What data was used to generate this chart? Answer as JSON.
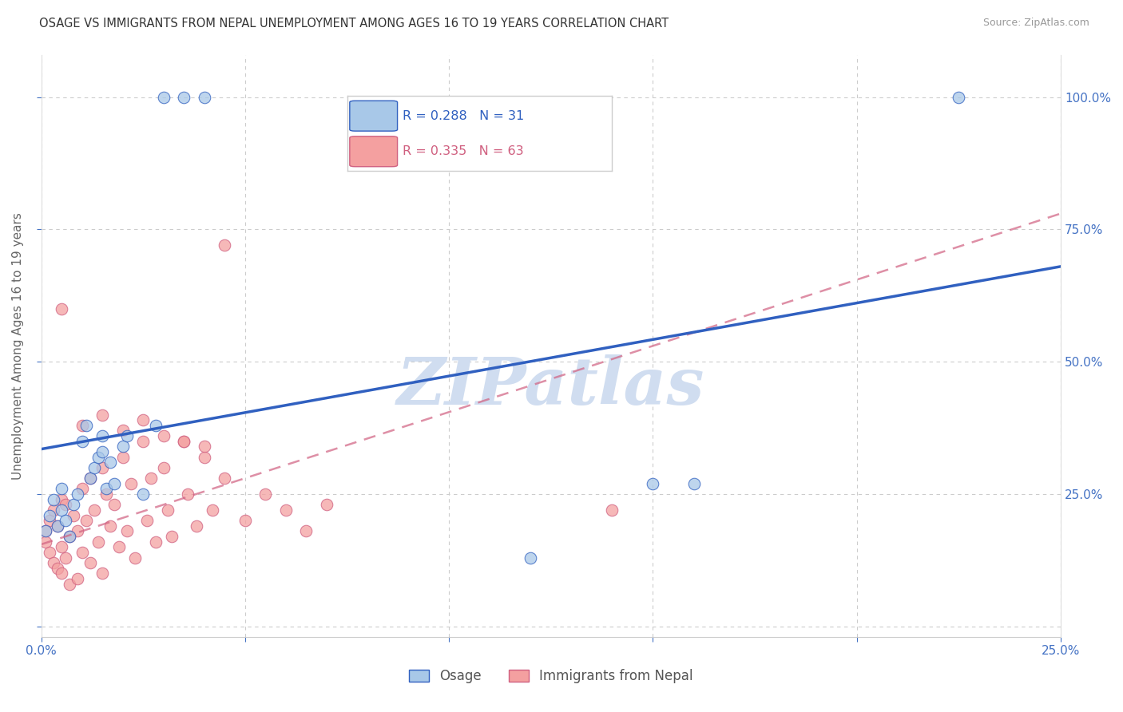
{
  "title": "OSAGE VS IMMIGRANTS FROM NEPAL UNEMPLOYMENT AMONG AGES 16 TO 19 YEARS CORRELATION CHART",
  "source": "Source: ZipAtlas.com",
  "ylabel": "Unemployment Among Ages 16 to 19 years",
  "legend_label1": "Osage",
  "legend_label2": "Immigrants from Nepal",
  "R1": 0.288,
  "N1": 31,
  "R2": 0.335,
  "N2": 63,
  "xlim": [
    0.0,
    0.25
  ],
  "ylim": [
    -0.02,
    1.08
  ],
  "yticks": [
    0.0,
    0.25,
    0.5,
    0.75,
    1.0
  ],
  "ytick_labels": [
    "",
    "25.0%",
    "50.0%",
    "75.0%",
    "100.0%"
  ],
  "xticks": [
    0.0,
    0.05,
    0.1,
    0.15,
    0.2,
    0.25
  ],
  "xtick_labels_show": [
    "0.0%",
    "",
    "",
    "",
    "",
    "25.0%"
  ],
  "color_blue": "#a8c8e8",
  "color_pink": "#f4a0a0",
  "trend_blue": "#3060c0",
  "trend_pink": "#d06080",
  "watermark": "ZIPatlas",
  "watermark_color": "#d0ddf0",
  "blue_trend_x0": 0.0,
  "blue_trend_y0": 0.335,
  "blue_trend_x1": 0.25,
  "blue_trend_y1": 0.68,
  "pink_trend_x0": 0.0,
  "pink_trend_y0": 0.155,
  "pink_trend_x1": 0.25,
  "pink_trend_y1": 0.78,
  "blue_x": [
    0.001,
    0.002,
    0.003,
    0.004,
    0.005,
    0.005,
    0.006,
    0.007,
    0.008,
    0.009,
    0.01,
    0.011,
    0.012,
    0.013,
    0.014,
    0.015,
    0.015,
    0.016,
    0.017,
    0.018,
    0.02,
    0.021,
    0.025,
    0.028,
    0.03,
    0.035,
    0.04,
    0.12,
    0.15,
    0.16,
    0.225
  ],
  "blue_y": [
    0.18,
    0.21,
    0.24,
    0.19,
    0.22,
    0.26,
    0.2,
    0.17,
    0.23,
    0.25,
    0.35,
    0.38,
    0.28,
    0.3,
    0.32,
    0.33,
    0.36,
    0.26,
    0.31,
    0.27,
    0.34,
    0.36,
    0.25,
    0.38,
    1.0,
    1.0,
    1.0,
    0.13,
    0.27,
    0.27,
    1.0
  ],
  "pink_x": [
    0.001,
    0.001,
    0.002,
    0.002,
    0.003,
    0.003,
    0.004,
    0.004,
    0.005,
    0.005,
    0.005,
    0.006,
    0.006,
    0.007,
    0.007,
    0.008,
    0.009,
    0.009,
    0.01,
    0.01,
    0.011,
    0.012,
    0.012,
    0.013,
    0.014,
    0.015,
    0.015,
    0.016,
    0.017,
    0.018,
    0.019,
    0.02,
    0.021,
    0.022,
    0.023,
    0.025,
    0.026,
    0.027,
    0.028,
    0.03,
    0.031,
    0.032,
    0.035,
    0.036,
    0.038,
    0.04,
    0.042,
    0.045,
    0.05,
    0.055,
    0.06,
    0.065,
    0.07,
    0.005,
    0.01,
    0.015,
    0.02,
    0.025,
    0.03,
    0.035,
    0.04,
    0.045,
    0.14
  ],
  "pink_y": [
    0.18,
    0.16,
    0.2,
    0.14,
    0.22,
    0.12,
    0.19,
    0.11,
    0.24,
    0.15,
    0.1,
    0.23,
    0.13,
    0.17,
    0.08,
    0.21,
    0.09,
    0.18,
    0.26,
    0.14,
    0.2,
    0.28,
    0.12,
    0.22,
    0.16,
    0.3,
    0.1,
    0.25,
    0.19,
    0.23,
    0.15,
    0.32,
    0.18,
    0.27,
    0.13,
    0.35,
    0.2,
    0.28,
    0.16,
    0.3,
    0.22,
    0.17,
    0.35,
    0.25,
    0.19,
    0.32,
    0.22,
    0.28,
    0.2,
    0.25,
    0.22,
    0.18,
    0.23,
    0.6,
    0.38,
    0.4,
    0.37,
    0.39,
    0.36,
    0.35,
    0.34,
    0.72,
    0.22
  ],
  "dot_size": 110
}
